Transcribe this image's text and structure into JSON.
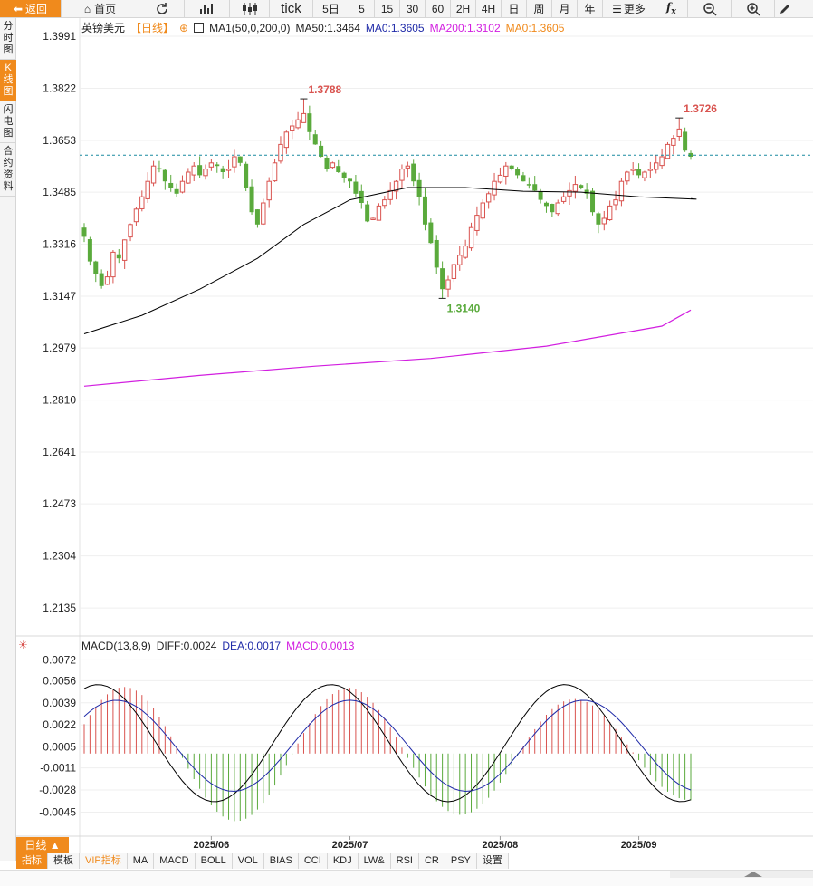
{
  "toolbar": {
    "back_label": "返回",
    "home_label": "首页",
    "tick_label": "tick",
    "periods": [
      "5日",
      "5",
      "15",
      "30",
      "60",
      "2H",
      "4H",
      "日",
      "周",
      "月",
      "年"
    ],
    "more_label": "更多"
  },
  "sidebar": {
    "items": [
      {
        "label": "分时图"
      },
      {
        "label": "K线图",
        "active": true
      },
      {
        "label": "闪电图"
      },
      {
        "label": "合约资料"
      }
    ]
  },
  "legend": {
    "symbol": "英镑美元",
    "period": "【日线】",
    "ma_settings": "MA1(50,0,200,0)",
    "ma50": "MA50:1.3464",
    "ma0_a": "MA0:1.3605",
    "ma200": "MA200:1.3102",
    "ma0_b": "MA0:1.3605"
  },
  "macd_legend": {
    "title": "MACD(13,8,9)",
    "diff": "DIFF:0.0024",
    "dea": "DEA:0.0017",
    "macd": "MACD:0.0013"
  },
  "colors": {
    "up": "#d9534f",
    "down": "#5aaa3c",
    "ma50": "#000000",
    "ma200": "#d21ee0",
    "accent": "#f08a1c",
    "dea": "#1f2aa8",
    "current_line": "#1a8aa0"
  },
  "period_button": "日线 ▲",
  "bottom_tabs": [
    "指标",
    "模板",
    "VIP指标",
    "MA",
    "MACD",
    "BOLL",
    "VOL",
    "BIAS",
    "CCI",
    "KDJ",
    "LW&",
    "RSI",
    "CR",
    "PSY",
    "设置"
  ],
  "chart_data": {
    "type": "candlestick",
    "price_axis_ticks": [
      "1.3991",
      "1.3822",
      "1.3653",
      "1.3485",
      "1.3316",
      "1.3147",
      "1.2979",
      "1.2810",
      "1.2641",
      "1.2473",
      "1.2304",
      "1.2135"
    ],
    "macd_axis_ticks": [
      "0.0072",
      "0.0056",
      "0.0039",
      "0.0022",
      "0.0005",
      "-0.0011",
      "-0.0028",
      "-0.0045"
    ],
    "x_ticks": [
      "2025/06",
      "2025/07",
      "2025/08",
      "2025/09"
    ],
    "annotations": {
      "high": "1.3788",
      "low": "1.3140",
      "recent_high": "1.3726"
    },
    "current_price": 1.3605,
    "ylim": [
      1.205,
      1.405
    ]
  }
}
